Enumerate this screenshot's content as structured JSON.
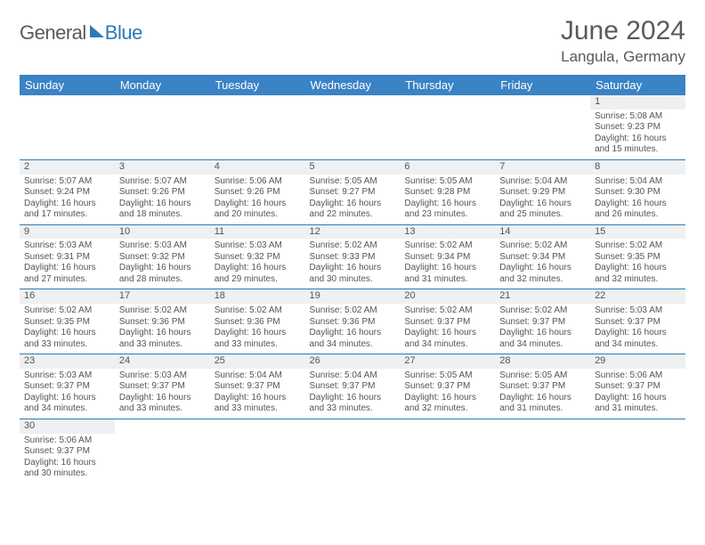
{
  "logo": {
    "text1": "General",
    "text2": "Blue"
  },
  "header": {
    "title": "June 2024",
    "location": "Langula, Germany"
  },
  "day_headers": [
    "Sunday",
    "Monday",
    "Tuesday",
    "Wednesday",
    "Thursday",
    "Friday",
    "Saturday"
  ],
  "colors": {
    "header_bg": "#3a83c4",
    "header_text": "#ffffff",
    "daynum_bg": "#eef0f1",
    "rule": "#2a7ab8",
    "body_text": "#555555",
    "title_text": "#5a5a5a"
  },
  "weeks": [
    [
      null,
      null,
      null,
      null,
      null,
      null,
      {
        "n": "1",
        "sunrise": "Sunrise: 5:08 AM",
        "sunset": "Sunset: 9:23 PM",
        "day1": "Daylight: 16 hours",
        "day2": "and 15 minutes."
      }
    ],
    [
      {
        "n": "2",
        "sunrise": "Sunrise: 5:07 AM",
        "sunset": "Sunset: 9:24 PM",
        "day1": "Daylight: 16 hours",
        "day2": "and 17 minutes."
      },
      {
        "n": "3",
        "sunrise": "Sunrise: 5:07 AM",
        "sunset": "Sunset: 9:26 PM",
        "day1": "Daylight: 16 hours",
        "day2": "and 18 minutes."
      },
      {
        "n": "4",
        "sunrise": "Sunrise: 5:06 AM",
        "sunset": "Sunset: 9:26 PM",
        "day1": "Daylight: 16 hours",
        "day2": "and 20 minutes."
      },
      {
        "n": "5",
        "sunrise": "Sunrise: 5:05 AM",
        "sunset": "Sunset: 9:27 PM",
        "day1": "Daylight: 16 hours",
        "day2": "and 22 minutes."
      },
      {
        "n": "6",
        "sunrise": "Sunrise: 5:05 AM",
        "sunset": "Sunset: 9:28 PM",
        "day1": "Daylight: 16 hours",
        "day2": "and 23 minutes."
      },
      {
        "n": "7",
        "sunrise": "Sunrise: 5:04 AM",
        "sunset": "Sunset: 9:29 PM",
        "day1": "Daylight: 16 hours",
        "day2": "and 25 minutes."
      },
      {
        "n": "8",
        "sunrise": "Sunrise: 5:04 AM",
        "sunset": "Sunset: 9:30 PM",
        "day1": "Daylight: 16 hours",
        "day2": "and 26 minutes."
      }
    ],
    [
      {
        "n": "9",
        "sunrise": "Sunrise: 5:03 AM",
        "sunset": "Sunset: 9:31 PM",
        "day1": "Daylight: 16 hours",
        "day2": "and 27 minutes."
      },
      {
        "n": "10",
        "sunrise": "Sunrise: 5:03 AM",
        "sunset": "Sunset: 9:32 PM",
        "day1": "Daylight: 16 hours",
        "day2": "and 28 minutes."
      },
      {
        "n": "11",
        "sunrise": "Sunrise: 5:03 AM",
        "sunset": "Sunset: 9:32 PM",
        "day1": "Daylight: 16 hours",
        "day2": "and 29 minutes."
      },
      {
        "n": "12",
        "sunrise": "Sunrise: 5:02 AM",
        "sunset": "Sunset: 9:33 PM",
        "day1": "Daylight: 16 hours",
        "day2": "and 30 minutes."
      },
      {
        "n": "13",
        "sunrise": "Sunrise: 5:02 AM",
        "sunset": "Sunset: 9:34 PM",
        "day1": "Daylight: 16 hours",
        "day2": "and 31 minutes."
      },
      {
        "n": "14",
        "sunrise": "Sunrise: 5:02 AM",
        "sunset": "Sunset: 9:34 PM",
        "day1": "Daylight: 16 hours",
        "day2": "and 32 minutes."
      },
      {
        "n": "15",
        "sunrise": "Sunrise: 5:02 AM",
        "sunset": "Sunset: 9:35 PM",
        "day1": "Daylight: 16 hours",
        "day2": "and 32 minutes."
      }
    ],
    [
      {
        "n": "16",
        "sunrise": "Sunrise: 5:02 AM",
        "sunset": "Sunset: 9:35 PM",
        "day1": "Daylight: 16 hours",
        "day2": "and 33 minutes."
      },
      {
        "n": "17",
        "sunrise": "Sunrise: 5:02 AM",
        "sunset": "Sunset: 9:36 PM",
        "day1": "Daylight: 16 hours",
        "day2": "and 33 minutes."
      },
      {
        "n": "18",
        "sunrise": "Sunrise: 5:02 AM",
        "sunset": "Sunset: 9:36 PM",
        "day1": "Daylight: 16 hours",
        "day2": "and 33 minutes."
      },
      {
        "n": "19",
        "sunrise": "Sunrise: 5:02 AM",
        "sunset": "Sunset: 9:36 PM",
        "day1": "Daylight: 16 hours",
        "day2": "and 34 minutes."
      },
      {
        "n": "20",
        "sunrise": "Sunrise: 5:02 AM",
        "sunset": "Sunset: 9:37 PM",
        "day1": "Daylight: 16 hours",
        "day2": "and 34 minutes."
      },
      {
        "n": "21",
        "sunrise": "Sunrise: 5:02 AM",
        "sunset": "Sunset: 9:37 PM",
        "day1": "Daylight: 16 hours",
        "day2": "and 34 minutes."
      },
      {
        "n": "22",
        "sunrise": "Sunrise: 5:03 AM",
        "sunset": "Sunset: 9:37 PM",
        "day1": "Daylight: 16 hours",
        "day2": "and 34 minutes."
      }
    ],
    [
      {
        "n": "23",
        "sunrise": "Sunrise: 5:03 AM",
        "sunset": "Sunset: 9:37 PM",
        "day1": "Daylight: 16 hours",
        "day2": "and 34 minutes."
      },
      {
        "n": "24",
        "sunrise": "Sunrise: 5:03 AM",
        "sunset": "Sunset: 9:37 PM",
        "day1": "Daylight: 16 hours",
        "day2": "and 33 minutes."
      },
      {
        "n": "25",
        "sunrise": "Sunrise: 5:04 AM",
        "sunset": "Sunset: 9:37 PM",
        "day1": "Daylight: 16 hours",
        "day2": "and 33 minutes."
      },
      {
        "n": "26",
        "sunrise": "Sunrise: 5:04 AM",
        "sunset": "Sunset: 9:37 PM",
        "day1": "Daylight: 16 hours",
        "day2": "and 33 minutes."
      },
      {
        "n": "27",
        "sunrise": "Sunrise: 5:05 AM",
        "sunset": "Sunset: 9:37 PM",
        "day1": "Daylight: 16 hours",
        "day2": "and 32 minutes."
      },
      {
        "n": "28",
        "sunrise": "Sunrise: 5:05 AM",
        "sunset": "Sunset: 9:37 PM",
        "day1": "Daylight: 16 hours",
        "day2": "and 31 minutes."
      },
      {
        "n": "29",
        "sunrise": "Sunrise: 5:06 AM",
        "sunset": "Sunset: 9:37 PM",
        "day1": "Daylight: 16 hours",
        "day2": "and 31 minutes."
      }
    ],
    [
      {
        "n": "30",
        "sunrise": "Sunrise: 5:06 AM",
        "sunset": "Sunset: 9:37 PM",
        "day1": "Daylight: 16 hours",
        "day2": "and 30 minutes."
      },
      null,
      null,
      null,
      null,
      null,
      null
    ]
  ]
}
